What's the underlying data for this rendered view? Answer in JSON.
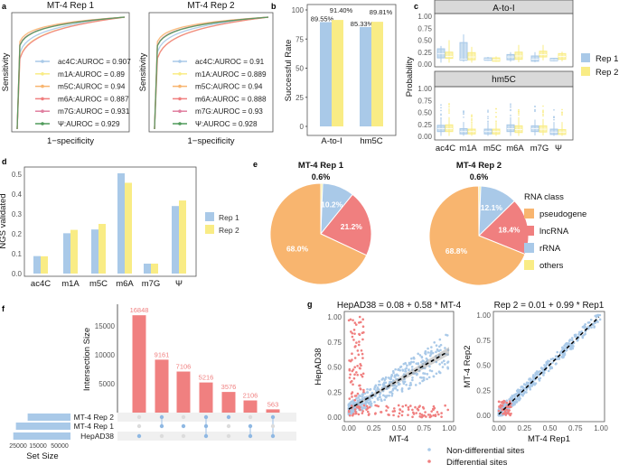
{
  "colors": {
    "rep1": "#a9c9e8",
    "rep2": "#f9ec85",
    "pseudogene": "#f8b56f",
    "lncRNA": "#f07f7f",
    "rRNA": "#a9c9e8",
    "others": "#f9ec85",
    "differential": "#f07f7f",
    "non_differential": "#a9c9e8",
    "upset_bar": "#f08080",
    "ac4C": "#a9c9e8",
    "m1A": "#f9ec85",
    "m5C": "#f8b56f",
    "m6A": "#f07f7f",
    "m7G": "#e07fa0",
    "psi": "#4f9a5a"
  },
  "panel_labels": [
    "a",
    "b",
    "c",
    "d",
    "e",
    "f",
    "g"
  ],
  "chart_data": [
    {
      "id": "a",
      "type": "line",
      "panels": [
        {
          "title": "MT-4 Rep 1",
          "xlabel": "1−specificity",
          "ylabel": "Sensitivity",
          "series": [
            {
              "name": "ac4C:AUROC = 0.907",
              "mod": "ac4C",
              "auroc": 0.907
            },
            {
              "name": "m1A:AUROC = 0.89",
              "mod": "m1A",
              "auroc": 0.89
            },
            {
              "name": "m5C:AUROC = 0.94",
              "mod": "m5C",
              "auroc": 0.94
            },
            {
              "name": "m6A:AUROC = 0.887",
              "mod": "m6A",
              "auroc": 0.887
            },
            {
              "name": "m7G:AUROC = 0.931",
              "mod": "m7G",
              "auroc": 0.931
            },
            {
              "name": "Ψ:AUROC = 0.929",
              "mod": "psi",
              "auroc": 0.929
            }
          ]
        },
        {
          "title": "MT-4 Rep 2",
          "xlabel": "1−specificity",
          "ylabel": "Sensitivity",
          "series": [
            {
              "name": "ac4C:AUROC = 0.91",
              "mod": "ac4C",
              "auroc": 0.91
            },
            {
              "name": "m1A:AUROC = 0.889",
              "mod": "m1A",
              "auroc": 0.889
            },
            {
              "name": "m5C:AUROC = 0.94",
              "mod": "m5C",
              "auroc": 0.94
            },
            {
              "name": "m6A:AUROC = 0.888",
              "mod": "m6A",
              "auroc": 0.888
            },
            {
              "name": "m7G:AUROC = 0.93",
              "mod": "m7G",
              "auroc": 0.93
            },
            {
              "name": "Ψ:AUROC = 0.928",
              "mod": "psi",
              "auroc": 0.928
            }
          ]
        }
      ]
    },
    {
      "id": "b",
      "type": "bar",
      "ylabel": "Successful Rate",
      "ylim": [
        0,
        100
      ],
      "yticks": [
        "0",
        "25",
        "50",
        "75",
        "100"
      ],
      "categories": [
        "A-to-I",
        "hm5C"
      ],
      "series": [
        {
          "key": "rep1",
          "values": [
            89.55,
            85.33
          ],
          "labels": [
            "89.55%",
            "85.33%"
          ]
        },
        {
          "key": "rep2",
          "values": [
            91.4,
            89.81
          ],
          "labels": [
            "91.40%",
            "89.81%"
          ]
        }
      ]
    },
    {
      "id": "c",
      "type": "box",
      "ylabel": "Probability",
      "ylim": [
        0,
        1
      ],
      "yticks": [
        "0.00",
        "0.25",
        "0.50",
        "0.75",
        "1.00"
      ],
      "categories": [
        "ac4C",
        "m1A",
        "m5C",
        "m6A",
        "m7G",
        "Ψ"
      ],
      "legend": [
        "Rep 1",
        "Rep 2"
      ],
      "facets": [
        {
          "title": "A-to-I",
          "rep1": [
            [
              0.03,
              0.13,
              0.22,
              0.32,
              0.38
            ],
            [
              0.05,
              0.08,
              0.1,
              0.45,
              0.62
            ],
            [
              0.07,
              0.08,
              0.1,
              0.13,
              0.15
            ],
            [
              0.05,
              0.09,
              0.15,
              0.2,
              0.25
            ],
            [
              0.04,
              0.06,
              0.1,
              0.17,
              0.25
            ],
            [
              0.06,
              0.07,
              0.09,
              0.12,
              0.13
            ]
          ],
          "rep2": [
            [
              0.03,
              0.12,
              0.16,
              0.25,
              0.5
            ],
            [
              0.03,
              0.09,
              0.15,
              0.24,
              0.36
            ],
            [
              0.05,
              0.06,
              0.09,
              0.13,
              0.16
            ],
            [
              0.04,
              0.1,
              0.17,
              0.25,
              0.4
            ],
            [
              0.08,
              0.15,
              0.2,
              0.27,
              0.4
            ],
            [
              0.06,
              0.1,
              0.16,
              0.22,
              0.26
            ]
          ]
        },
        {
          "title": "hm5C",
          "rep1": [
            [
              0.01,
              0.1,
              0.16,
              0.23,
              0.38
            ],
            [
              0.01,
              0.05,
              0.1,
              0.16,
              0.3
            ],
            [
              0.01,
              0.05,
              0.1,
              0.15,
              0.3
            ],
            [
              0.01,
              0.1,
              0.16,
              0.24,
              0.4
            ],
            [
              0.02,
              0.1,
              0.16,
              0.22,
              0.35
            ],
            [
              0.01,
              0.04,
              0.09,
              0.15,
              0.3
            ]
          ],
          "rep2": [
            [
              0.01,
              0.1,
              0.16,
              0.24,
              0.4
            ],
            [
              0.01,
              0.05,
              0.1,
              0.15,
              0.28
            ],
            [
              0.01,
              0.05,
              0.1,
              0.15,
              0.3
            ],
            [
              0.01,
              0.08,
              0.14,
              0.22,
              0.4
            ],
            [
              0.02,
              0.09,
              0.15,
              0.22,
              0.36
            ],
            [
              0.01,
              0.04,
              0.09,
              0.14,
              0.3
            ]
          ]
        }
      ]
    },
    {
      "id": "d",
      "type": "bar",
      "ylabel": "NGS validated",
      "ylim": [
        0,
        0.52
      ],
      "yticks": [
        "0.0",
        "0.1",
        "0.2",
        "0.3",
        "0.4",
        "0.5"
      ],
      "categories": [
        "ac4C",
        "m1A",
        "m5C",
        "m6A",
        "m7G",
        "Ψ"
      ],
      "legend": [
        "Rep 1",
        "Rep 2"
      ],
      "series": [
        {
          "key": "rep1",
          "values": [
            0.088,
            0.203,
            0.222,
            0.505,
            0.05,
            0.34
          ]
        },
        {
          "key": "rep2",
          "values": [
            0.087,
            0.22,
            0.25,
            0.457,
            0.05,
            0.368
          ]
        }
      ]
    },
    {
      "id": "e",
      "type": "pie",
      "legend_title": "RNA class",
      "legend": [
        "pseudogene",
        "lncRNA",
        "rRNA",
        "others"
      ],
      "pies": [
        {
          "title": "MT-4 Rep 1",
          "values": [
            68.0,
            21.2,
            10.2,
            0.6
          ],
          "labels": [
            "68.0%",
            "21.2%",
            "10.2%",
            "0.6%"
          ]
        },
        {
          "title": "MT-4 Rep 2",
          "values": [
            68.8,
            18.4,
            12.1,
            0.6
          ],
          "labels": [
            "68.8%",
            "18.4%",
            "12.1%",
            "0.6%"
          ]
        }
      ]
    },
    {
      "id": "f",
      "type": "bar",
      "ylabel": "Intersection Size",
      "yticks": [
        "5000",
        "10000",
        "15000"
      ],
      "sets": [
        "MT-4 Rep 2",
        "MT-4 Rep 1",
        "HepAD38"
      ],
      "set_size_label": "Set Size",
      "set_size_ticks": [
        "25000",
        "15000",
        "50000"
      ],
      "set_sizes": [
        18516,
        23589,
        24733
      ],
      "intersections": [
        {
          "value": 16848,
          "label": "16848",
          "members": [
            2
          ]
        },
        {
          "value": 9161,
          "label": "9161",
          "members": [
            0,
            1
          ]
        },
        {
          "value": 7106,
          "label": "7106",
          "members": [
            1
          ]
        },
        {
          "value": 5216,
          "label": "5216",
          "members": [
            0,
            1,
            2
          ]
        },
        {
          "value": 3576,
          "label": "3576",
          "members": [
            0
          ]
        },
        {
          "value": 2106,
          "label": "2106",
          "members": [
            1,
            2
          ]
        },
        {
          "value": 563,
          "label": "563",
          "members": [
            0,
            2
          ]
        }
      ]
    },
    {
      "id": "g",
      "type": "scatter",
      "legend": [
        "Non-differential sites",
        "Differential sites"
      ],
      "ticks": [
        "0.00",
        "0.25",
        "0.50",
        "0.75",
        "1.00"
      ],
      "panels": [
        {
          "title": "HepAD38 = 0.08 + 0.58 * MT-4",
          "xlabel": "MT-4",
          "ylabel": "HepAD38",
          "intercept": 0.08,
          "slope": 0.58,
          "xlim": [
            0,
            1
          ],
          "ylim": [
            0,
            1
          ]
        },
        {
          "title": "Rep 2 = 0.01 + 0.99 * Rep1",
          "xlabel": "MT-4 Rep1",
          "ylabel": "MT-4 Rep2",
          "intercept": 0.01,
          "slope": 0.99,
          "xlim": [
            0,
            1
          ],
          "ylim": [
            0,
            1
          ]
        }
      ]
    }
  ]
}
